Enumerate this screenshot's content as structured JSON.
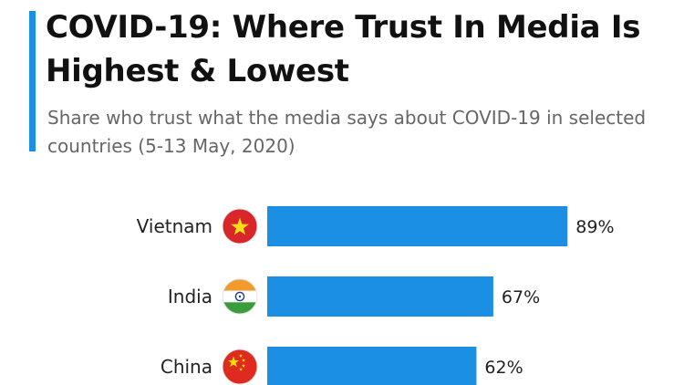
{
  "header": {
    "title": "COVID-19: Where Trust In Media Is Highest & Lowest",
    "subtitle": "Share who trust what the media says about COVID-19 in selected countries (5-13 May, 2020)"
  },
  "colors": {
    "accent": "#1a8fe3",
    "bar": "#1a8fe3",
    "title": "#111111",
    "subtitle": "#666666"
  },
  "chart_data": {
    "type": "bar",
    "orientation": "horizontal",
    "title": "COVID-19: Where Trust In Media Is Highest & Lowest",
    "subtitle": "Share who trust what the media says about COVID-19 in selected countries (5-13 May, 2020)",
    "categories": [
      "Vietnam",
      "India",
      "China"
    ],
    "values": [
      89,
      67,
      62
    ],
    "value_labels": [
      "89%",
      "67%",
      "62%"
    ],
    "flags": [
      "vietnam-flag-icon",
      "india-flag-icon",
      "china-flag-icon"
    ],
    "xlim": [
      0,
      100
    ],
    "grid": false,
    "legend": "none"
  }
}
